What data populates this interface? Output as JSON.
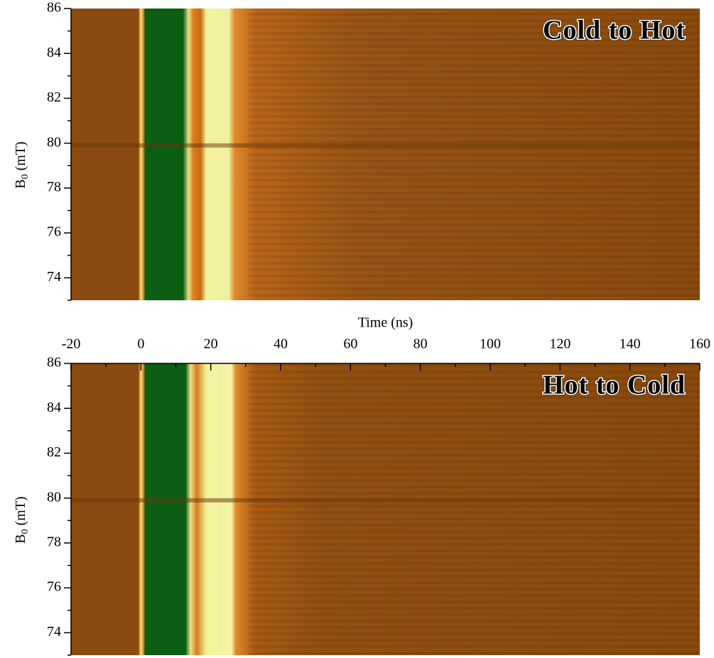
{
  "chart_data": [
    {
      "type": "heatmap",
      "annotation": "Cold to Hot",
      "annotation_color": "#e00000",
      "ylabel": [
        "B",
        "0",
        " (mT)"
      ],
      "ylim": [
        73,
        86
      ],
      "yticks": [
        74,
        76,
        78,
        80,
        82,
        84,
        86
      ],
      "yminorticks": [
        73,
        75,
        77,
        79,
        81,
        83,
        85
      ],
      "xlim": [
        -20,
        160
      ]
    },
    {
      "type": "heatmap",
      "annotation": "Hot to Cold",
      "annotation_color": "#1030e0",
      "ylabel": [
        "B",
        "0",
        " (mT)"
      ],
      "xlabel": "Time (ns)",
      "ylim": [
        73,
        86
      ],
      "yticks": [
        74,
        76,
        78,
        80,
        82,
        84,
        86
      ],
      "yminorticks": [
        73,
        75,
        77,
        79,
        81,
        83,
        85
      ],
      "xlim": [
        -20,
        160
      ],
      "xticks": [
        -20,
        0,
        20,
        40,
        60,
        80,
        100,
        120,
        140,
        160
      ],
      "xminorticks": [
        -10,
        10,
        30,
        50,
        70,
        90,
        110,
        130,
        150
      ]
    }
  ]
}
